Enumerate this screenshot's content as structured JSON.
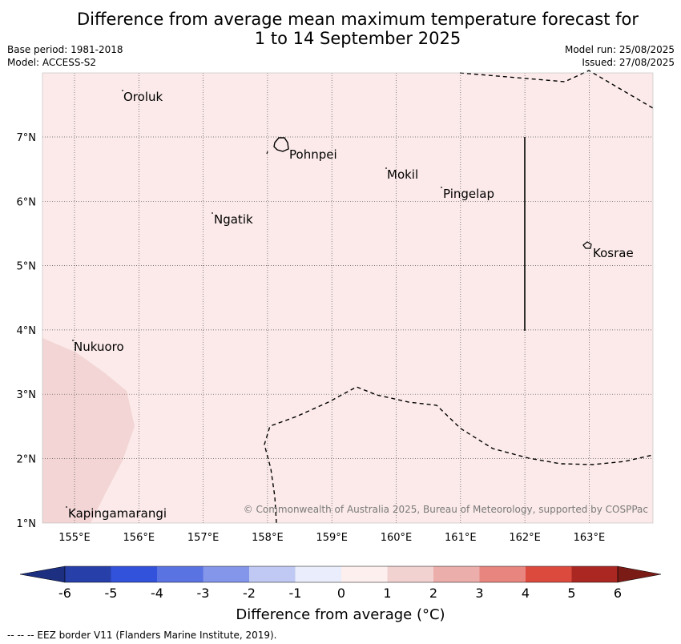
{
  "title_line1": "Difference from average mean maximum temperature forecast for",
  "title_line2": "1 to 14 September 2025",
  "meta": {
    "base_period": "Base period: 1981-2018",
    "model": "Model: ACCESS-S2",
    "model_run": "Model run: 25/08/2025",
    "issued": "Issued: 27/08/2025"
  },
  "map": {
    "lon_ticks": [
      "155°E",
      "156°E",
      "157°E",
      "158°E",
      "159°E",
      "160°E",
      "161°E",
      "162°E",
      "163°E"
    ],
    "lat_ticks": [
      "7°N",
      "6°N",
      "5°N",
      "4°N",
      "3°N",
      "2°N",
      "1°N"
    ],
    "background_color": "#fbeae9",
    "anomaly_color": "#f2d5d4",
    "places": [
      {
        "name": "Oroluk"
      },
      {
        "name": "Pohnpei"
      },
      {
        "name": "Mokil"
      },
      {
        "name": "Pingelap"
      },
      {
        "name": "Ngatik"
      },
      {
        "name": "Kosrae"
      },
      {
        "name": "Nukuoro"
      },
      {
        "name": "Kapingamarangi"
      }
    ],
    "copyright": "© Commonwealth of Australia 2025, Bureau of Meteorology, supported by COSPPac"
  },
  "colorbar": {
    "ticks": [
      "-6",
      "-5",
      "-4",
      "-3",
      "-2",
      "-1",
      "0",
      "1",
      "2",
      "3",
      "4",
      "5",
      "6"
    ],
    "colors": [
      "#263fa9",
      "#3352dc",
      "#5a73e3",
      "#8396ea",
      "#c0c9f3",
      "#eaedfb",
      "#fdefee",
      "#f2d2d1",
      "#ecaeab",
      "#e8857e",
      "#dc4a3e",
      "#aa2821"
    ],
    "under_color": "#1c2f80",
    "over_color": "#7a1b16",
    "label": "Difference from average (°C)"
  },
  "footer": "--  --  -- EEZ border V11 (Flanders Marine Institute, 2019)."
}
